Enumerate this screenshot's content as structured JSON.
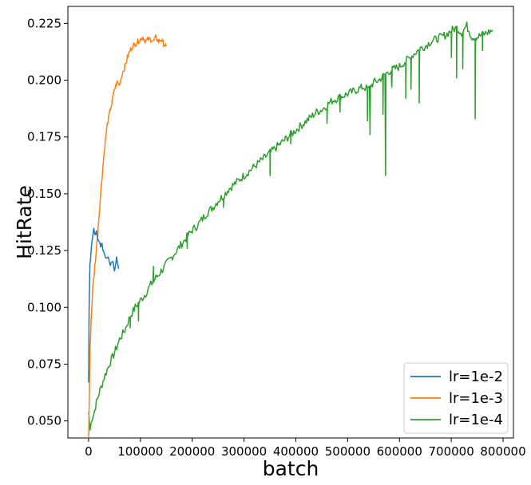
{
  "chart_data": {
    "type": "line",
    "title": "",
    "xlabel": "batch",
    "ylabel": "HitRate",
    "xlim": [
      -40000,
      820000
    ],
    "ylim": [
      0.0425,
      0.2325
    ],
    "x_ticks": [
      0,
      100000,
      200000,
      300000,
      400000,
      500000,
      600000,
      700000,
      800000
    ],
    "y_ticks": [
      0.05,
      0.075,
      0.1,
      0.125,
      0.15,
      0.175,
      0.2,
      0.225
    ],
    "y_tick_labels": [
      "0.050",
      "0.075",
      "0.100",
      "0.125",
      "0.150",
      "0.175",
      "0.200",
      "0.225"
    ],
    "grid": false,
    "legend_position": "bottom-right",
    "series": [
      {
        "name": "lr=1e-2",
        "color": "#1f77b4",
        "points": [
          [
            0,
            0.067
          ],
          [
            1000,
            0.098
          ],
          [
            2500,
            0.118
          ],
          [
            5000,
            0.126
          ],
          [
            8000,
            0.131
          ],
          [
            10000,
            0.134
          ],
          [
            12000,
            0.132
          ],
          [
            15000,
            0.133
          ],
          [
            18000,
            0.129
          ],
          [
            22000,
            0.128
          ],
          [
            26000,
            0.127
          ],
          [
            30000,
            0.124
          ],
          [
            34000,
            0.122
          ],
          [
            38000,
            0.123
          ],
          [
            42000,
            0.119
          ],
          [
            46000,
            0.121
          ],
          [
            50000,
            0.117
          ],
          [
            54000,
            0.122
          ],
          [
            58000,
            0.117
          ]
        ]
      },
      {
        "name": "lr=1e-3",
        "color": "#ff7f0e",
        "points": [
          [
            0,
            0.042
          ],
          [
            1500,
            0.063
          ],
          [
            3000,
            0.082
          ],
          [
            5000,
            0.095
          ],
          [
            8000,
            0.108
          ],
          [
            12000,
            0.118
          ],
          [
            16000,
            0.128
          ],
          [
            20000,
            0.14
          ],
          [
            25000,
            0.155
          ],
          [
            30000,
            0.168
          ],
          [
            35000,
            0.179
          ],
          [
            40000,
            0.185
          ],
          [
            45000,
            0.19
          ],
          [
            50000,
            0.196
          ],
          [
            55000,
            0.199
          ],
          [
            60000,
            0.198
          ],
          [
            65000,
            0.203
          ],
          [
            70000,
            0.206
          ],
          [
            75000,
            0.21
          ],
          [
            80000,
            0.213
          ],
          [
            85000,
            0.215
          ],
          [
            90000,
            0.216
          ],
          [
            95000,
            0.217
          ],
          [
            100000,
            0.218
          ],
          [
            105000,
            0.219
          ],
          [
            110000,
            0.217
          ],
          [
            115000,
            0.218
          ],
          [
            120000,
            0.218
          ],
          [
            125000,
            0.217
          ],
          [
            130000,
            0.219
          ],
          [
            135000,
            0.217
          ],
          [
            140000,
            0.218
          ],
          [
            145000,
            0.216
          ],
          [
            150000,
            0.215
          ]
        ]
      },
      {
        "name": "lr=1e-4",
        "color": "#2ca02c",
        "points": [
          [
            0,
            0.054
          ],
          [
            3000,
            0.046
          ],
          [
            6000,
            0.051
          ],
          [
            10000,
            0.053
          ],
          [
            15000,
            0.058
          ],
          [
            20000,
            0.062
          ],
          [
            30000,
            0.069
          ],
          [
            40000,
            0.075
          ],
          [
            50000,
            0.08
          ],
          [
            60000,
            0.086
          ],
          [
            70000,
            0.09
          ],
          [
            80000,
            0.096
          ],
          [
            90000,
            0.1
          ],
          [
            100000,
            0.103
          ],
          [
            110000,
            0.106
          ],
          [
            120000,
            0.11
          ],
          [
            130000,
            0.113
          ],
          [
            140000,
            0.116
          ],
          [
            150000,
            0.119
          ],
          [
            160000,
            0.122
          ],
          [
            170000,
            0.125
          ],
          [
            180000,
            0.128
          ],
          [
            190000,
            0.131
          ],
          [
            200000,
            0.134
          ],
          [
            210000,
            0.136
          ],
          [
            220000,
            0.139
          ],
          [
            230000,
            0.142
          ],
          [
            240000,
            0.144
          ],
          [
            250000,
            0.147
          ],
          [
            260000,
            0.149
          ],
          [
            270000,
            0.152
          ],
          [
            280000,
            0.154
          ],
          [
            290000,
            0.156
          ],
          [
            300000,
            0.158
          ],
          [
            310000,
            0.16
          ],
          [
            320000,
            0.162
          ],
          [
            330000,
            0.164
          ],
          [
            340000,
            0.166
          ],
          [
            350000,
            0.168
          ],
          [
            360000,
            0.17
          ],
          [
            370000,
            0.172
          ],
          [
            380000,
            0.174
          ],
          [
            390000,
            0.176
          ],
          [
            400000,
            0.178
          ],
          [
            410000,
            0.18
          ],
          [
            420000,
            0.182
          ],
          [
            430000,
            0.184
          ],
          [
            440000,
            0.186
          ],
          [
            450000,
            0.187
          ],
          [
            460000,
            0.189
          ],
          [
            470000,
            0.191
          ],
          [
            480000,
            0.192
          ],
          [
            490000,
            0.193
          ],
          [
            500000,
            0.194
          ],
          [
            510000,
            0.195
          ],
          [
            520000,
            0.196
          ],
          [
            530000,
            0.197
          ],
          [
            540000,
            0.196
          ],
          [
            550000,
            0.199
          ],
          [
            560000,
            0.2
          ],
          [
            570000,
            0.202
          ],
          [
            580000,
            0.204
          ],
          [
            590000,
            0.205
          ],
          [
            600000,
            0.206
          ],
          [
            610000,
            0.208
          ],
          [
            620000,
            0.21
          ],
          [
            630000,
            0.212
          ],
          [
            640000,
            0.214
          ],
          [
            650000,
            0.215
          ],
          [
            660000,
            0.217
          ],
          [
            670000,
            0.218
          ],
          [
            680000,
            0.219
          ],
          [
            690000,
            0.22
          ],
          [
            700000,
            0.222
          ],
          [
            710000,
            0.223
          ],
          [
            720000,
            0.221
          ],
          [
            730000,
            0.224
          ],
          [
            740000,
            0.219
          ],
          [
            750000,
            0.219
          ],
          [
            760000,
            0.22
          ],
          [
            770000,
            0.221
          ],
          [
            780000,
            0.222
          ]
        ],
        "dips": [
          [
            80000,
            0.091
          ],
          [
            96000,
            0.094
          ],
          [
            125000,
            0.118
          ],
          [
            190000,
            0.126
          ],
          [
            260000,
            0.144
          ],
          [
            350000,
            0.158
          ],
          [
            390000,
            0.172
          ],
          [
            460000,
            0.181
          ],
          [
            485000,
            0.186
          ],
          [
            538000,
            0.182
          ],
          [
            543000,
            0.176
          ],
          [
            560000,
            0.2
          ],
          [
            568000,
            0.185
          ],
          [
            573000,
            0.158
          ],
          [
            585000,
            0.197
          ],
          [
            612000,
            0.192
          ],
          [
            622000,
            0.196
          ],
          [
            638000,
            0.19
          ],
          [
            700000,
            0.21
          ],
          [
            710000,
            0.201
          ],
          [
            722000,
            0.205
          ],
          [
            746000,
            0.183
          ],
          [
            760000,
            0.213
          ]
        ]
      }
    ]
  }
}
